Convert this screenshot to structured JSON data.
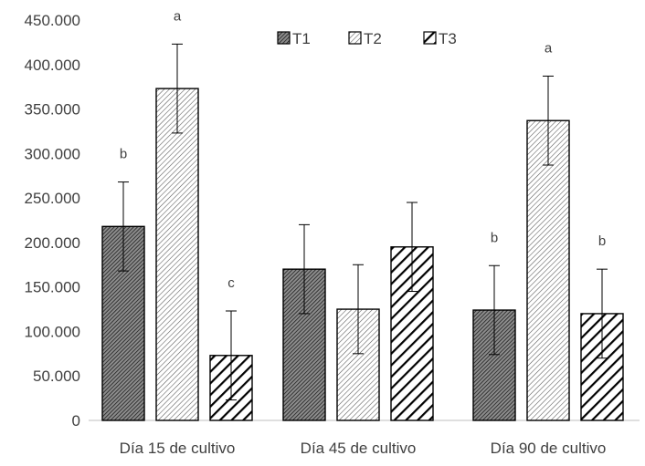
{
  "chart_data": {
    "type": "bar",
    "title": "",
    "xlabel": "",
    "ylabel": "",
    "ylim": [
      0,
      450000
    ],
    "ytick_step": 50000,
    "ytick_labels": [
      "0",
      "50.000",
      "100.000",
      "150.000",
      "200.000",
      "250.000",
      "300.000",
      "350.000",
      "400.000",
      "450.000"
    ],
    "grid": false,
    "legend_position": "top",
    "categories": [
      "Día 15 de cultivo",
      "Día 45 de cultivo",
      "Día 90 de cultivo"
    ],
    "series": [
      {
        "name": "T1",
        "pattern": "dense-dark-hatch",
        "values": [
          218000,
          170000,
          124000
        ],
        "errors": [
          50000,
          50000,
          50000
        ],
        "sig_labels": [
          "b",
          "",
          "b"
        ]
      },
      {
        "name": "T2",
        "pattern": "light-hatch",
        "values": [
          373000,
          125000,
          337000
        ],
        "errors": [
          50000,
          50000,
          50000
        ],
        "sig_labels": [
          "a",
          "",
          "a"
        ]
      },
      {
        "name": "T3",
        "pattern": "bold-hatch",
        "values": [
          73000,
          195000,
          120000
        ],
        "errors": [
          50000,
          50000,
          50000
        ],
        "sig_labels": [
          "c",
          "",
          "b"
        ]
      }
    ],
    "colors": {
      "text": "#404040",
      "stroke": "#000000"
    }
  }
}
